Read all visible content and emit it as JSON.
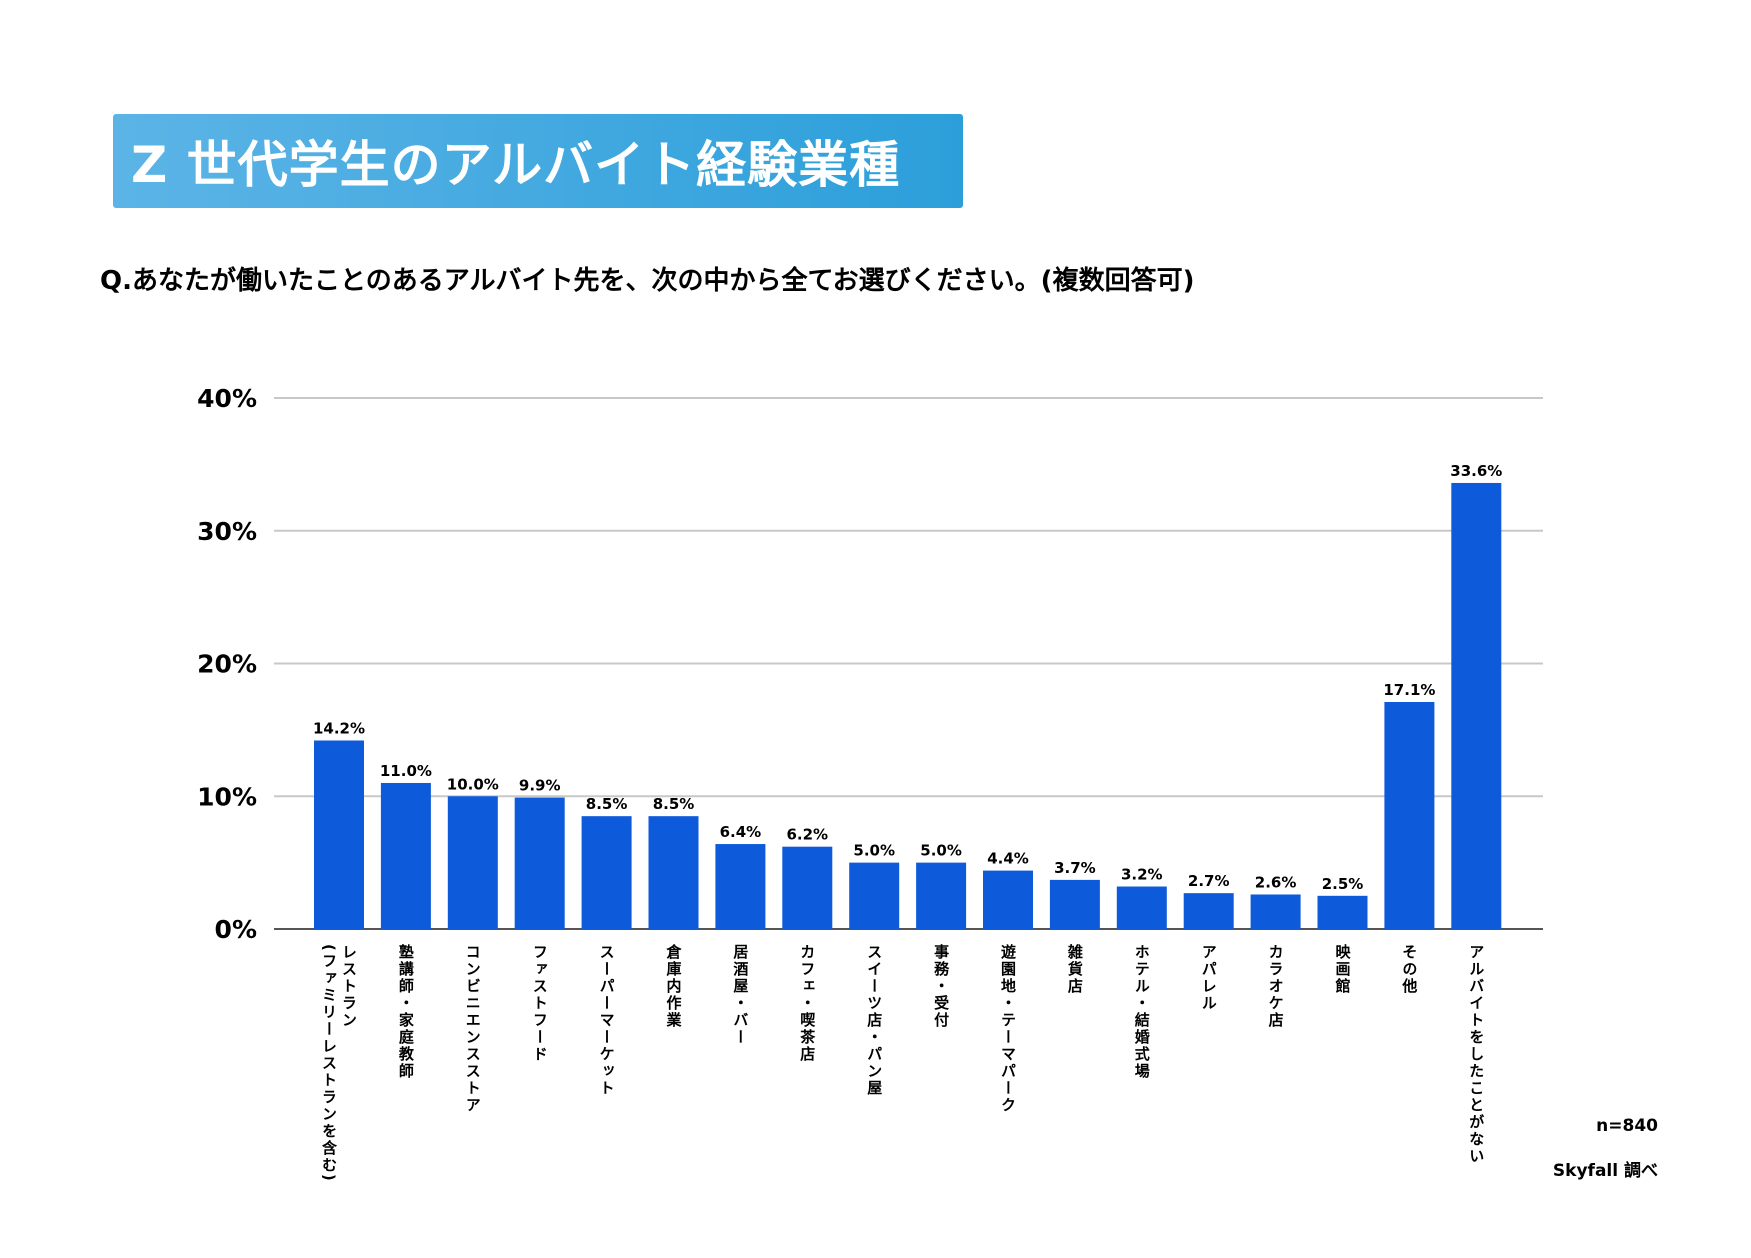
{
  "title": "Z 世代学生のアルバイト経験業種",
  "question": "Q.あなたが働いたことのあるアルバイト先を、次の中から全てお選びください。(複数回答可)",
  "sample_size": "n=840",
  "source": "Skyfall 調べ",
  "colors": {
    "bar": "#0d5bdb",
    "title_bg_start": "#5cb4e6",
    "title_bg_end": "#2c9fda"
  },
  "chart_data": {
    "type": "bar",
    "title": "Z 世代学生のアルバイト経験業種",
    "xlabel": "",
    "ylabel": "",
    "ylim": [
      0,
      40
    ],
    "yticks": [
      "0%",
      "10%",
      "20%",
      "30%",
      "40%"
    ],
    "grid": true,
    "categories": [
      "レストラン\n(ファミリーレストランを含む)",
      "塾講師・家庭教師",
      "コンビニエンスストア",
      "ファストフード",
      "スーパーマーケット",
      "倉庫内作業",
      "居酒屋・バー",
      "カフェ・喫茶店",
      "スイーツ店・パン屋",
      "事務・受付",
      "遊園地・テーマパーク",
      "雑貨店",
      "ホテル・結婚式場",
      "アパレル",
      "カラオケ店",
      "映画館",
      "その他",
      "アルバイトをしたことがない"
    ],
    "values": [
      14.2,
      11.0,
      10.0,
      9.9,
      8.5,
      8.5,
      6.4,
      6.2,
      5.0,
      5.0,
      4.4,
      3.7,
      3.2,
      2.7,
      2.6,
      2.5,
      17.1,
      33.6
    ],
    "value_labels": [
      "14.2%",
      "11.0%",
      "10.0%",
      "9.9%",
      "8.5%",
      "8.5%",
      "6.4%",
      "6.2%",
      "5.0%",
      "5.0%",
      "4.4%",
      "3.7%",
      "3.2%",
      "2.7%",
      "2.6%",
      "2.5%",
      "17.1%",
      "33.6%"
    ]
  }
}
